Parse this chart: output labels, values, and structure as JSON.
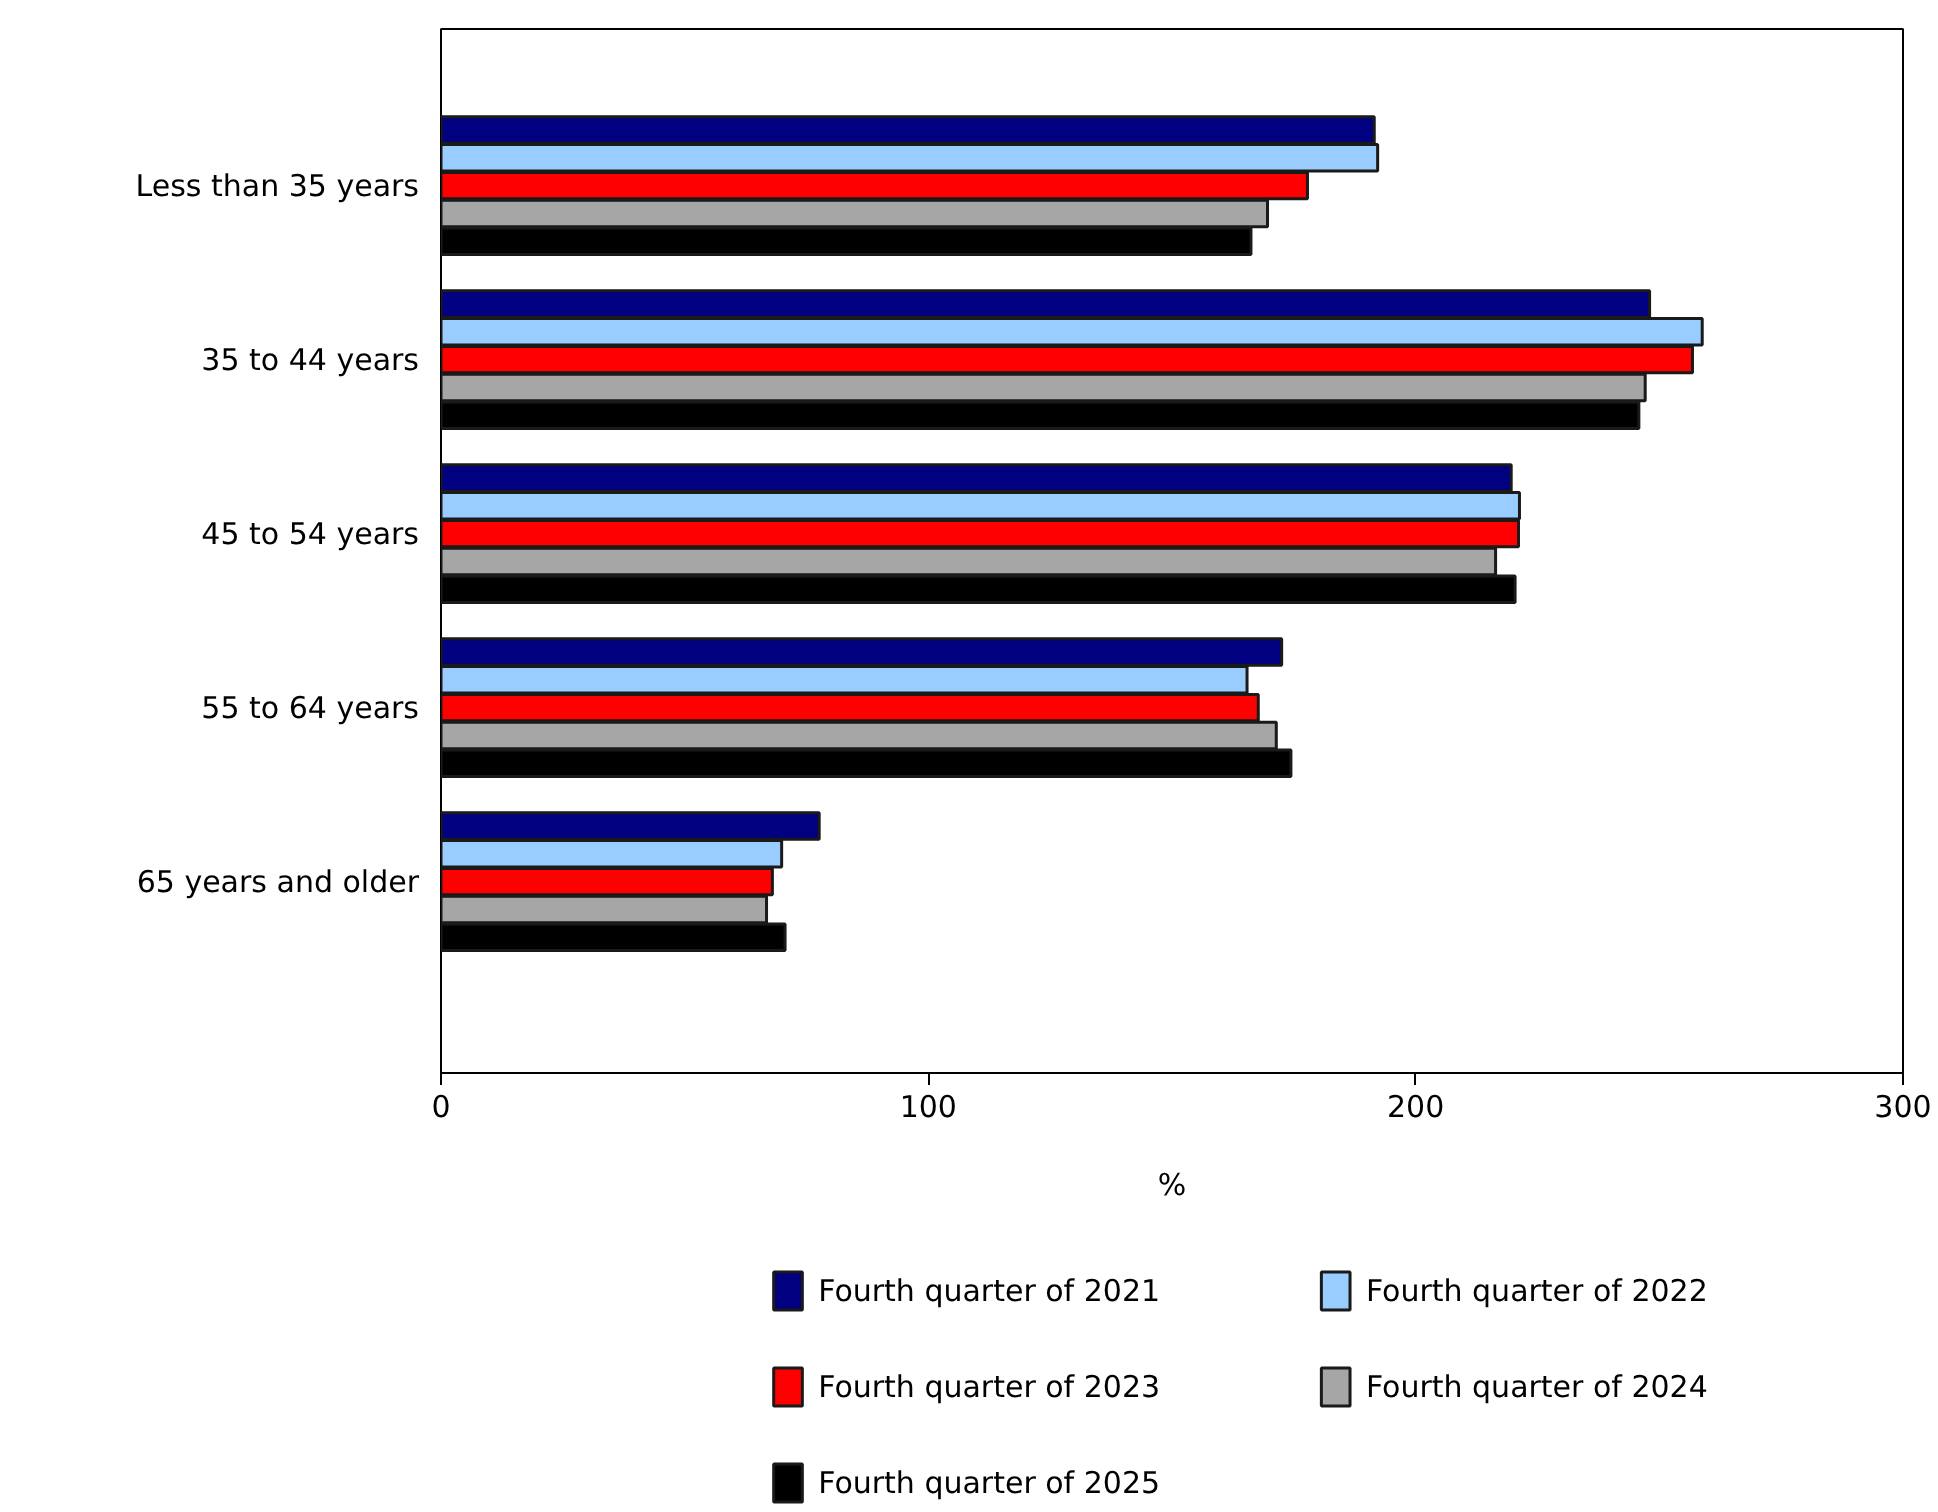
{
  "chart_data": {
    "type": "bar",
    "orientation": "horizontal",
    "xlabel": "%",
    "categories": [
      "Less than 35 years",
      "35 to 44 years",
      "45 to 54 years",
      "55 to 64 years",
      "65 years and older"
    ],
    "series": [
      {
        "name": "Fourth quarter of 2021",
        "color": "#000080",
        "values": [
          191.5,
          248.0,
          219.6,
          172.5,
          77.6
        ]
      },
      {
        "name": "Fourth quarter of 2022",
        "color": "#99ccff",
        "values": [
          192.2,
          258.8,
          221.3,
          165.4,
          69.9
        ]
      },
      {
        "name": "Fourth quarter of 2023",
        "color": "#ff0000",
        "values": [
          177.8,
          256.8,
          221.1,
          167.7,
          68.0
        ]
      },
      {
        "name": "Fourth quarter of 2024",
        "color": "#a6a6a6",
        "values": [
          169.6,
          247.1,
          216.4,
          171.4,
          66.8
        ]
      },
      {
        "name": "Fourth quarter of 2025",
        "color": "#000000",
        "values": [
          166.2,
          245.8,
          220.4,
          174.4,
          70.6
        ]
      }
    ],
    "xlim": [
      0,
      300
    ],
    "xticks": [
      0,
      100,
      200,
      300
    ],
    "grid": false,
    "legend": "bottom"
  }
}
